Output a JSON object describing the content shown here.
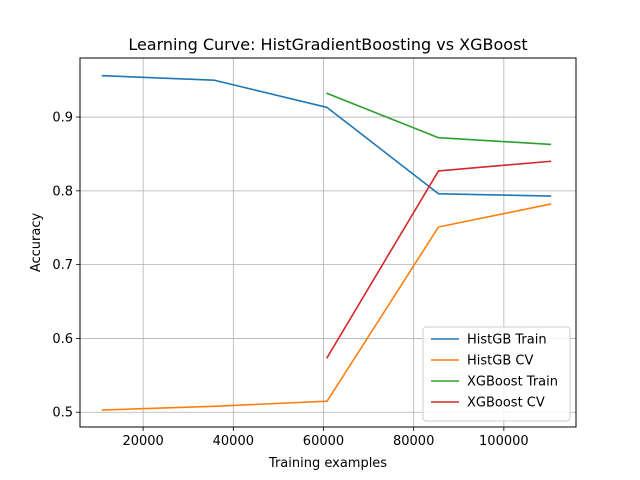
{
  "chart_data": {
    "type": "line",
    "title": "Learning Curve: HistGradientBoosting vs XGBoost",
    "xlabel": "Training examples",
    "ylabel": "Accuracy",
    "xlim": [
      6000,
      116000
    ],
    "ylim": [
      0.48,
      0.98
    ],
    "xticks": [
      20000,
      40000,
      60000,
      80000,
      100000
    ],
    "yticks": [
      0.5,
      0.6,
      0.7,
      0.8,
      0.9
    ],
    "xtick_labels": [
      "20000",
      "40000",
      "60000",
      "80000",
      "100000"
    ],
    "ytick_labels": [
      "0.5",
      "0.6",
      "0.7",
      "0.8",
      "0.9"
    ],
    "grid": true,
    "legend_position": "lower-right",
    "series": [
      {
        "name": "HistGB Train",
        "color": "#1f77b4",
        "x": [
          11000,
          35700,
          60800,
          85500,
          110300
        ],
        "y": [
          0.956,
          0.95,
          0.913,
          0.796,
          0.793
        ]
      },
      {
        "name": "HistGB CV",
        "color": "#ff7f0e",
        "x": [
          11000,
          35700,
          60800,
          85500,
          110300
        ],
        "y": [
          0.503,
          0.508,
          0.515,
          0.751,
          0.782
        ]
      },
      {
        "name": "XGBoost Train",
        "color": "#2ca02c",
        "x": [
          60800,
          85500,
          110300
        ],
        "y": [
          0.932,
          0.872,
          0.863
        ]
      },
      {
        "name": "XGBoost CV",
        "color": "#d62728",
        "x": [
          60800,
          85500,
          110300
        ],
        "y": [
          0.574,
          0.827,
          0.84
        ]
      }
    ]
  }
}
